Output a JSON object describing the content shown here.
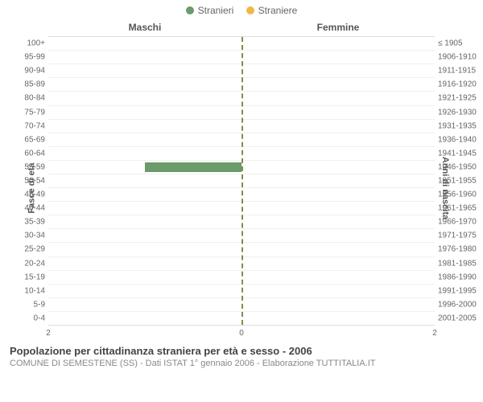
{
  "legend": {
    "items": [
      {
        "label": "Stranieri",
        "color": "#6b9a6b"
      },
      {
        "label": "Straniere",
        "color": "#f0b84a"
      }
    ]
  },
  "chart": {
    "type": "population-pyramid",
    "left_panel_title": "Maschi",
    "right_panel_title": "Femmine",
    "y_left_title": "Fasce di età",
    "y_right_title": "Anni di nascita",
    "x_max": 2,
    "x_ticks_left": [
      2,
      0
    ],
    "x_ticks_right": [
      0,
      2
    ],
    "background_color": "#ffffff",
    "grid_color": "#f0f0f0",
    "center_line_color": "#888844",
    "male_bar_color": "#6b9a6b",
    "female_bar_color": "#f0b84a",
    "rows": [
      {
        "age": "0-4",
        "birth": "2001-2005",
        "male": 0,
        "female": 0
      },
      {
        "age": "5-9",
        "birth": "1996-2000",
        "male": 0,
        "female": 0
      },
      {
        "age": "10-14",
        "birth": "1991-1995",
        "male": 0,
        "female": 0
      },
      {
        "age": "15-19",
        "birth": "1986-1990",
        "male": 0,
        "female": 0
      },
      {
        "age": "20-24",
        "birth": "1981-1985",
        "male": 0,
        "female": 0
      },
      {
        "age": "25-29",
        "birth": "1976-1980",
        "male": 0,
        "female": 0
      },
      {
        "age": "30-34",
        "birth": "1971-1975",
        "male": 0,
        "female": 0
      },
      {
        "age": "35-39",
        "birth": "1966-1970",
        "male": 0,
        "female": 0
      },
      {
        "age": "40-44",
        "birth": "1961-1965",
        "male": 0,
        "female": 0
      },
      {
        "age": "45-49",
        "birth": "1956-1960",
        "male": 0,
        "female": 0
      },
      {
        "age": "50-54",
        "birth": "1951-1955",
        "male": 0,
        "female": 0
      },
      {
        "age": "55-59",
        "birth": "1946-1950",
        "male": 1,
        "female": 0
      },
      {
        "age": "60-64",
        "birth": "1941-1945",
        "male": 0,
        "female": 0
      },
      {
        "age": "65-69",
        "birth": "1936-1940",
        "male": 0,
        "female": 0
      },
      {
        "age": "70-74",
        "birth": "1931-1935",
        "male": 0,
        "female": 0
      },
      {
        "age": "75-79",
        "birth": "1926-1930",
        "male": 0,
        "female": 0
      },
      {
        "age": "80-84",
        "birth": "1921-1925",
        "male": 0,
        "female": 0
      },
      {
        "age": "85-89",
        "birth": "1916-1920",
        "male": 0,
        "female": 0
      },
      {
        "age": "90-94",
        "birth": "1911-1915",
        "male": 0,
        "female": 0
      },
      {
        "age": "95-99",
        "birth": "1906-1910",
        "male": 0,
        "female": 0
      },
      {
        "age": "100+",
        "birth": "≤ 1905",
        "male": 0,
        "female": 0
      }
    ]
  },
  "footer": {
    "title": "Popolazione per cittadinanza straniera per età e sesso - 2006",
    "subtitle": "COMUNE DI SEMESTENE (SS) - Dati ISTAT 1° gennaio 2006 - Elaborazione TUTTITALIA.IT"
  }
}
